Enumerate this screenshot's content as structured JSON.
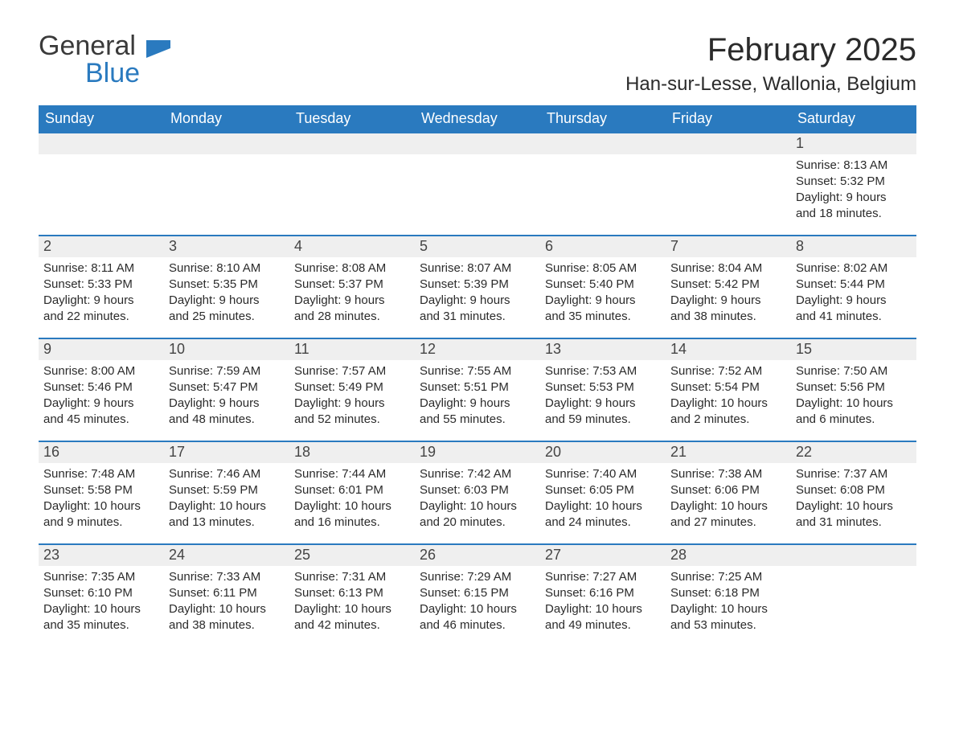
{
  "logo": {
    "general": "General",
    "blue": "Blue"
  },
  "header": {
    "month_title": "February 2025",
    "location": "Han-sur-Lesse, Wallonia, Belgium"
  },
  "colors": {
    "brand_blue": "#2a7abf",
    "header_row_bg": "#2a7abf",
    "header_row_text": "#ffffff",
    "daynum_bg": "#efefef",
    "daynum_border": "#2a7abf",
    "text": "#2b2b2b",
    "background": "#ffffff"
  },
  "typography": {
    "month_title_size": 40,
    "location_size": 24,
    "header_cell_size": 18,
    "daynum_size": 18,
    "body_size": 15
  },
  "weekdays": [
    "Sunday",
    "Monday",
    "Tuesday",
    "Wednesday",
    "Thursday",
    "Friday",
    "Saturday"
  ],
  "weeks": [
    [
      {
        "blank": true
      },
      {
        "blank": true
      },
      {
        "blank": true
      },
      {
        "blank": true
      },
      {
        "blank": true
      },
      {
        "blank": true
      },
      {
        "day": "1",
        "sunrise": "Sunrise: 8:13 AM",
        "sunset": "Sunset: 5:32 PM",
        "daylight1": "Daylight: 9 hours",
        "daylight2": "and 18 minutes."
      }
    ],
    [
      {
        "day": "2",
        "sunrise": "Sunrise: 8:11 AM",
        "sunset": "Sunset: 5:33 PM",
        "daylight1": "Daylight: 9 hours",
        "daylight2": "and 22 minutes."
      },
      {
        "day": "3",
        "sunrise": "Sunrise: 8:10 AM",
        "sunset": "Sunset: 5:35 PM",
        "daylight1": "Daylight: 9 hours",
        "daylight2": "and 25 minutes."
      },
      {
        "day": "4",
        "sunrise": "Sunrise: 8:08 AM",
        "sunset": "Sunset: 5:37 PM",
        "daylight1": "Daylight: 9 hours",
        "daylight2": "and 28 minutes."
      },
      {
        "day": "5",
        "sunrise": "Sunrise: 8:07 AM",
        "sunset": "Sunset: 5:39 PM",
        "daylight1": "Daylight: 9 hours",
        "daylight2": "and 31 minutes."
      },
      {
        "day": "6",
        "sunrise": "Sunrise: 8:05 AM",
        "sunset": "Sunset: 5:40 PM",
        "daylight1": "Daylight: 9 hours",
        "daylight2": "and 35 minutes."
      },
      {
        "day": "7",
        "sunrise": "Sunrise: 8:04 AM",
        "sunset": "Sunset: 5:42 PM",
        "daylight1": "Daylight: 9 hours",
        "daylight2": "and 38 minutes."
      },
      {
        "day": "8",
        "sunrise": "Sunrise: 8:02 AM",
        "sunset": "Sunset: 5:44 PM",
        "daylight1": "Daylight: 9 hours",
        "daylight2": "and 41 minutes."
      }
    ],
    [
      {
        "day": "9",
        "sunrise": "Sunrise: 8:00 AM",
        "sunset": "Sunset: 5:46 PM",
        "daylight1": "Daylight: 9 hours",
        "daylight2": "and 45 minutes."
      },
      {
        "day": "10",
        "sunrise": "Sunrise: 7:59 AM",
        "sunset": "Sunset: 5:47 PM",
        "daylight1": "Daylight: 9 hours",
        "daylight2": "and 48 minutes."
      },
      {
        "day": "11",
        "sunrise": "Sunrise: 7:57 AM",
        "sunset": "Sunset: 5:49 PM",
        "daylight1": "Daylight: 9 hours",
        "daylight2": "and 52 minutes."
      },
      {
        "day": "12",
        "sunrise": "Sunrise: 7:55 AM",
        "sunset": "Sunset: 5:51 PM",
        "daylight1": "Daylight: 9 hours",
        "daylight2": "and 55 minutes."
      },
      {
        "day": "13",
        "sunrise": "Sunrise: 7:53 AM",
        "sunset": "Sunset: 5:53 PM",
        "daylight1": "Daylight: 9 hours",
        "daylight2": "and 59 minutes."
      },
      {
        "day": "14",
        "sunrise": "Sunrise: 7:52 AM",
        "sunset": "Sunset: 5:54 PM",
        "daylight1": "Daylight: 10 hours",
        "daylight2": "and 2 minutes."
      },
      {
        "day": "15",
        "sunrise": "Sunrise: 7:50 AM",
        "sunset": "Sunset: 5:56 PM",
        "daylight1": "Daylight: 10 hours",
        "daylight2": "and 6 minutes."
      }
    ],
    [
      {
        "day": "16",
        "sunrise": "Sunrise: 7:48 AM",
        "sunset": "Sunset: 5:58 PM",
        "daylight1": "Daylight: 10 hours",
        "daylight2": "and 9 minutes."
      },
      {
        "day": "17",
        "sunrise": "Sunrise: 7:46 AM",
        "sunset": "Sunset: 5:59 PM",
        "daylight1": "Daylight: 10 hours",
        "daylight2": "and 13 minutes."
      },
      {
        "day": "18",
        "sunrise": "Sunrise: 7:44 AM",
        "sunset": "Sunset: 6:01 PM",
        "daylight1": "Daylight: 10 hours",
        "daylight2": "and 16 minutes."
      },
      {
        "day": "19",
        "sunrise": "Sunrise: 7:42 AM",
        "sunset": "Sunset: 6:03 PM",
        "daylight1": "Daylight: 10 hours",
        "daylight2": "and 20 minutes."
      },
      {
        "day": "20",
        "sunrise": "Sunrise: 7:40 AM",
        "sunset": "Sunset: 6:05 PM",
        "daylight1": "Daylight: 10 hours",
        "daylight2": "and 24 minutes."
      },
      {
        "day": "21",
        "sunrise": "Sunrise: 7:38 AM",
        "sunset": "Sunset: 6:06 PM",
        "daylight1": "Daylight: 10 hours",
        "daylight2": "and 27 minutes."
      },
      {
        "day": "22",
        "sunrise": "Sunrise: 7:37 AM",
        "sunset": "Sunset: 6:08 PM",
        "daylight1": "Daylight: 10 hours",
        "daylight2": "and 31 minutes."
      }
    ],
    [
      {
        "day": "23",
        "sunrise": "Sunrise: 7:35 AM",
        "sunset": "Sunset: 6:10 PM",
        "daylight1": "Daylight: 10 hours",
        "daylight2": "and 35 minutes."
      },
      {
        "day": "24",
        "sunrise": "Sunrise: 7:33 AM",
        "sunset": "Sunset: 6:11 PM",
        "daylight1": "Daylight: 10 hours",
        "daylight2": "and 38 minutes."
      },
      {
        "day": "25",
        "sunrise": "Sunrise: 7:31 AM",
        "sunset": "Sunset: 6:13 PM",
        "daylight1": "Daylight: 10 hours",
        "daylight2": "and 42 minutes."
      },
      {
        "day": "26",
        "sunrise": "Sunrise: 7:29 AM",
        "sunset": "Sunset: 6:15 PM",
        "daylight1": "Daylight: 10 hours",
        "daylight2": "and 46 minutes."
      },
      {
        "day": "27",
        "sunrise": "Sunrise: 7:27 AM",
        "sunset": "Sunset: 6:16 PM",
        "daylight1": "Daylight: 10 hours",
        "daylight2": "and 49 minutes."
      },
      {
        "day": "28",
        "sunrise": "Sunrise: 7:25 AM",
        "sunset": "Sunset: 6:18 PM",
        "daylight1": "Daylight: 10 hours",
        "daylight2": "and 53 minutes."
      },
      {
        "blank": true
      }
    ]
  ]
}
